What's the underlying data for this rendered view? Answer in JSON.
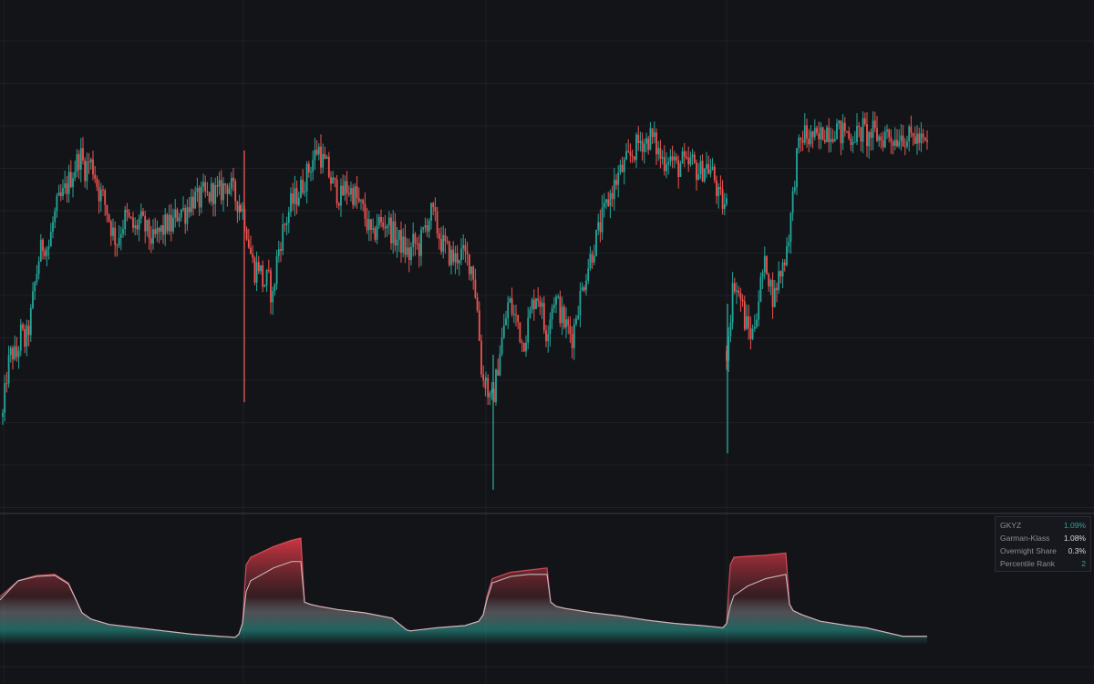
{
  "theme": {
    "background": "#131418",
    "grid": "#1f2127",
    "divider": "#2c2e35",
    "up": "#26a69a",
    "down": "#ef5350",
    "vol_line": "#c9c9cc",
    "vol_fill_high": "#ef3b4a",
    "vol_fill_mid": "#9a9aa0",
    "vol_fill_low": "#26a69a"
  },
  "chart_data": {
    "type": "candlestick",
    "title": "",
    "xlabel": "",
    "ylabel": "",
    "price_panel": {
      "ylim": [
        0,
        100
      ],
      "gaps_after_session": [
        264,
        533,
        797
      ],
      "sessions": [
        {
          "x_start": 3,
          "x_end": 264,
          "path": [
            [
              0,
              12
            ],
            [
              5,
              25
            ],
            [
              10,
              30
            ],
            [
              15,
              28
            ],
            [
              20,
              35
            ],
            [
              25,
              32
            ],
            [
              30,
              38
            ],
            [
              35,
              48
            ],
            [
              40,
              56
            ],
            [
              45,
              60
            ],
            [
              50,
              58
            ],
            [
              55,
              65
            ],
            [
              60,
              70
            ],
            [
              65,
              72
            ],
            [
              70,
              75
            ],
            [
              75,
              78
            ],
            [
              80,
              81
            ],
            [
              85,
              84
            ],
            [
              90,
              80
            ],
            [
              95,
              82
            ],
            [
              100,
              80
            ],
            [
              105,
              74
            ],
            [
              110,
              72
            ],
            [
              115,
              68
            ],
            [
              120,
              63
            ],
            [
              125,
              60
            ],
            [
              130,
              64
            ],
            [
              135,
              67
            ],
            [
              140,
              65
            ],
            [
              145,
              63
            ],
            [
              150,
              66
            ],
            [
              155,
              64
            ],
            [
              160,
              62
            ],
            [
              165,
              60
            ],
            [
              170,
              62
            ],
            [
              175,
              63
            ],
            [
              180,
              65
            ],
            [
              185,
              64
            ],
            [
              190,
              67
            ],
            [
              195,
              69
            ],
            [
              200,
              68
            ],
            [
              205,
              71
            ],
            [
              210,
              72
            ],
            [
              215,
              71
            ],
            [
              220,
              73
            ],
            [
              225,
              72
            ],
            [
              230,
              74
            ],
            [
              235,
              73
            ],
            [
              240,
              74
            ],
            [
              245,
              76
            ],
            [
              250,
              75
            ],
            [
              255,
              72
            ],
            [
              261,
              70
            ]
          ]
        },
        {
          "x_start": 264,
          "x_end": 533,
          "path": [
            [
              0,
              70
            ],
            [
              5,
              66
            ],
            [
              10,
              58
            ],
            [
              15,
              52
            ],
            [
              20,
              54
            ],
            [
              25,
              48
            ],
            [
              30,
              50
            ],
            [
              35,
              44
            ],
            [
              40,
              56
            ],
            [
              45,
              62
            ],
            [
              50,
              66
            ],
            [
              55,
              70
            ],
            [
              60,
              72
            ],
            [
              65,
              74
            ],
            [
              70,
              77
            ],
            [
              75,
              80
            ],
            [
              80,
              83
            ],
            [
              85,
              86
            ],
            [
              90,
              82
            ],
            [
              95,
              80
            ],
            [
              100,
              76
            ],
            [
              105,
              74
            ],
            [
              110,
              72
            ],
            [
              115,
              75
            ],
            [
              120,
              74
            ],
            [
              125,
              73
            ],
            [
              130,
              70
            ],
            [
              135,
              68
            ],
            [
              140,
              64
            ],
            [
              145,
              60
            ],
            [
              150,
              66
            ],
            [
              155,
              64
            ],
            [
              160,
              66
            ],
            [
              165,
              63
            ],
            [
              170,
              61
            ],
            [
              175,
              60
            ],
            [
              180,
              58
            ],
            [
              185,
              56
            ],
            [
              190,
              60
            ],
            [
              195,
              58
            ],
            [
              200,
              62
            ],
            [
              205,
              66
            ],
            [
              210,
              68
            ],
            [
              215,
              64
            ],
            [
              220,
              60
            ],
            [
              225,
              58
            ],
            [
              230,
              56
            ],
            [
              235,
              55
            ],
            [
              240,
              57
            ],
            [
              245,
              56
            ],
            [
              250,
              55
            ],
            [
              255,
              52
            ],
            [
              260,
              40
            ],
            [
              265,
              22
            ]
          ]
        },
        {
          "x_start": 533,
          "x_end": 797,
          "path": [
            [
              0,
              22
            ],
            [
              5,
              15
            ],
            [
              10,
              20
            ],
            [
              15,
              30
            ],
            [
              20,
              36
            ],
            [
              25,
              44
            ],
            [
              30,
              40
            ],
            [
              35,
              38
            ],
            [
              40,
              32
            ],
            [
              45,
              36
            ],
            [
              50,
              42
            ],
            [
              55,
              46
            ],
            [
              60,
              44
            ],
            [
              65,
              34
            ],
            [
              70,
              40
            ],
            [
              75,
              45
            ],
            [
              80,
              42
            ],
            [
              85,
              38
            ],
            [
              90,
              36
            ],
            [
              95,
              34
            ],
            [
              100,
              42
            ],
            [
              105,
              46
            ],
            [
              110,
              52
            ],
            [
              115,
              56
            ],
            [
              120,
              60
            ],
            [
              125,
              64
            ],
            [
              130,
              68
            ],
            [
              135,
              72
            ],
            [
              140,
              75
            ],
            [
              145,
              78
            ],
            [
              150,
              80
            ],
            [
              155,
              82
            ],
            [
              160,
              84
            ],
            [
              165,
              86
            ],
            [
              170,
              88
            ],
            [
              175,
              87
            ],
            [
              180,
              89
            ],
            [
              185,
              87
            ],
            [
              190,
              84
            ],
            [
              195,
              82
            ],
            [
              200,
              84
            ],
            [
              205,
              82
            ],
            [
              210,
              80
            ],
            [
              215,
              82
            ],
            [
              220,
              80
            ],
            [
              225,
              82
            ],
            [
              230,
              80
            ],
            [
              235,
              79
            ],
            [
              240,
              81
            ],
            [
              245,
              80
            ],
            [
              250,
              78
            ],
            [
              255,
              72
            ],
            [
              261,
              70
            ]
          ]
        },
        {
          "x_start": 797,
          "x_end": 1017,
          "path": [
            [
              0,
              30
            ],
            [
              4,
              40
            ],
            [
              8,
              50
            ],
            [
              12,
              46
            ],
            [
              16,
              44
            ],
            [
              20,
              38
            ],
            [
              24,
              36
            ],
            [
              28,
              34
            ],
            [
              32,
              40
            ],
            [
              36,
              46
            ],
            [
              40,
              52
            ],
            [
              44,
              54
            ],
            [
              48,
              48
            ],
            [
              52,
              44
            ],
            [
              56,
              50
            ],
            [
              60,
              52
            ],
            [
              64,
              56
            ],
            [
              68,
              62
            ],
            [
              72,
              70
            ],
            [
              76,
              82
            ],
            [
              80,
              86
            ],
            [
              85,
              90
            ],
            [
              90,
              88
            ],
            [
              95,
              89
            ],
            [
              100,
              87
            ],
            [
              105,
              90
            ],
            [
              110,
              91
            ],
            [
              115,
              90
            ],
            [
              120,
              92
            ],
            [
              125,
              89
            ],
            [
              130,
              91
            ],
            [
              135,
              88
            ],
            [
              140,
              90
            ],
            [
              145,
              89
            ],
            [
              150,
              91
            ],
            [
              155,
              88
            ],
            [
              160,
              90
            ],
            [
              165,
              89
            ],
            [
              170,
              88
            ],
            [
              175,
              90
            ],
            [
              180,
              89
            ],
            [
              185,
              88
            ],
            [
              190,
              90
            ],
            [
              195,
              89
            ],
            [
              200,
              88
            ],
            [
              205,
              89
            ],
            [
              210,
              88
            ],
            [
              215,
              87
            ],
            [
              220,
              86
            ]
          ]
        }
      ]
    },
    "volatility_panel": {
      "ylim": [
        0,
        1
      ],
      "x": [
        0,
        20,
        40,
        60,
        75,
        90,
        100,
        120,
        150,
        180,
        210,
        240,
        258,
        262,
        266,
        270,
        275,
        300,
        320,
        330,
        334,
        340,
        350,
        370,
        400,
        430,
        446,
        450,
        460,
        480,
        510,
        525,
        530,
        534,
        540,
        560,
        580,
        600,
        604,
        610,
        620,
        650,
        680,
        710,
        740,
        770,
        793,
        797,
        801,
        805,
        820,
        840,
        862,
        866,
        870,
        880,
        900,
        930,
        950,
        970,
        990,
        1010,
        1017
      ],
      "gkyz": [
        0.45,
        0.6,
        0.65,
        0.66,
        0.58,
        0.3,
        0.24,
        0.19,
        0.16,
        0.13,
        0.1,
        0.08,
        0.07,
        0.1,
        0.2,
        0.75,
        0.82,
        0.92,
        0.98,
        1.0,
        0.4,
        0.38,
        0.36,
        0.33,
        0.3,
        0.25,
        0.14,
        0.13,
        0.14,
        0.16,
        0.18,
        0.22,
        0.28,
        0.45,
        0.62,
        0.68,
        0.7,
        0.72,
        0.4,
        0.36,
        0.34,
        0.3,
        0.27,
        0.23,
        0.2,
        0.18,
        0.16,
        0.2,
        0.75,
        0.82,
        0.83,
        0.84,
        0.86,
        0.38,
        0.32,
        0.28,
        0.22,
        0.18,
        0.16,
        0.12,
        0.08,
        0.08,
        0.08
      ],
      "garman_klass": [
        0.42,
        0.6,
        0.64,
        0.65,
        0.57,
        0.3,
        0.24,
        0.19,
        0.16,
        0.13,
        0.1,
        0.08,
        0.07,
        0.1,
        0.2,
        0.5,
        0.6,
        0.72,
        0.78,
        0.78,
        0.4,
        0.38,
        0.36,
        0.33,
        0.3,
        0.25,
        0.14,
        0.13,
        0.14,
        0.16,
        0.18,
        0.22,
        0.28,
        0.42,
        0.58,
        0.64,
        0.66,
        0.66,
        0.4,
        0.36,
        0.34,
        0.3,
        0.27,
        0.23,
        0.2,
        0.18,
        0.16,
        0.2,
        0.36,
        0.46,
        0.55,
        0.62,
        0.66,
        0.38,
        0.32,
        0.28,
        0.22,
        0.18,
        0.16,
        0.12,
        0.08,
        0.08,
        0.08
      ]
    }
  },
  "info_panel": {
    "rows": [
      {
        "label": "GKYZ",
        "value": "1.09%",
        "color": "teal"
      },
      {
        "label": "Garman-Klass",
        "value": "1.08%",
        "color": "white"
      },
      {
        "label": "Overnight Share",
        "value": "0.3%",
        "color": "white"
      },
      {
        "label": "Percentile Rank",
        "value": "2",
        "color": "teal"
      }
    ]
  }
}
